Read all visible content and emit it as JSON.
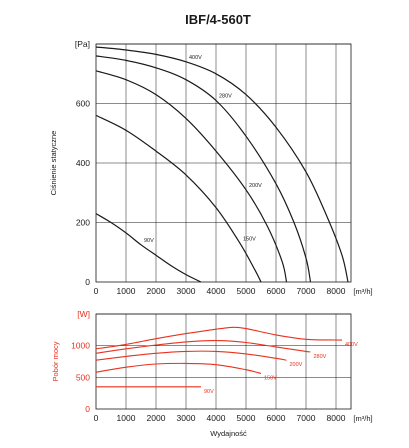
{
  "title": "IBF/4-560T",
  "colors": {
    "pressure": "#1a1a1a",
    "power": "#e8321e",
    "grid": "#1a1a1a"
  },
  "chart_data": [
    {
      "type": "line",
      "id": "pressure",
      "ylabel": "Ciśnienie statyczne",
      "yunit": "[Pa]",
      "xunit": "[m³/h]",
      "xlim": [
        0,
        8500
      ],
      "ylim": [
        0,
        800
      ],
      "xticks": [
        0,
        1000,
        2000,
        3000,
        4000,
        5000,
        6000,
        7000,
        8000
      ],
      "yticks": [
        0,
        200,
        400,
        600
      ],
      "grid": true,
      "series": [
        {
          "name": "400V",
          "points": [
            [
              0,
              790
            ],
            [
              1000,
              780
            ],
            [
              2000,
              765
            ],
            [
              3000,
              740
            ],
            [
              4000,
              700
            ],
            [
              5000,
              630
            ],
            [
              6000,
              520
            ],
            [
              7000,
              370
            ],
            [
              7700,
              220
            ],
            [
              8200,
              90
            ],
            [
              8400,
              0
            ]
          ]
        },
        {
          "name": "280V",
          "points": [
            [
              0,
              760
            ],
            [
              1000,
              745
            ],
            [
              2000,
              720
            ],
            [
              3000,
              680
            ],
            [
              4000,
              610
            ],
            [
              5000,
              490
            ],
            [
              6000,
              330
            ],
            [
              6600,
              200
            ],
            [
              7000,
              80
            ],
            [
              7150,
              0
            ]
          ]
        },
        {
          "name": "200V",
          "points": [
            [
              0,
              710
            ],
            [
              1000,
              680
            ],
            [
              2000,
              630
            ],
            [
              3000,
              550
            ],
            [
              4000,
              440
            ],
            [
              5000,
              310
            ],
            [
              5700,
              190
            ],
            [
              6200,
              70
            ],
            [
              6350,
              0
            ]
          ]
        },
        {
          "name": "150V",
          "points": [
            [
              0,
              560
            ],
            [
              1000,
              510
            ],
            [
              2000,
              440
            ],
            [
              3000,
              360
            ],
            [
              4000,
              250
            ],
            [
              4800,
              130
            ],
            [
              5300,
              40
            ],
            [
              5500,
              0
            ]
          ]
        },
        {
          "name": "90V",
          "points": [
            [
              0,
              230
            ],
            [
              500,
              200
            ],
            [
              1000,
              165
            ],
            [
              1500,
              125
            ],
            [
              2000,
              90
            ],
            [
              2500,
              55
            ],
            [
              3000,
              25
            ],
            [
              3500,
              0
            ]
          ]
        }
      ]
    },
    {
      "type": "line",
      "id": "power",
      "ylabel": "Pobór mocy",
      "yunit": "[W]",
      "xunit": "[m³/h]",
      "xlabel": "Wydajność",
      "xlim": [
        0,
        8500
      ],
      "ylim": [
        0,
        1500
      ],
      "xticks": [
        0,
        1000,
        2000,
        3000,
        4000,
        5000,
        6000,
        7000,
        8000
      ],
      "yticks": [
        0,
        500,
        1000
      ],
      "grid": true,
      "series": [
        {
          "name": "400V",
          "points": [
            [
              0,
              950
            ],
            [
              1000,
              1020
            ],
            [
              2000,
              1110
            ],
            [
              3000,
              1190
            ],
            [
              4000,
              1260
            ],
            [
              4600,
              1290
            ],
            [
              5000,
              1270
            ],
            [
              6000,
              1170
            ],
            [
              7000,
              1100
            ],
            [
              8000,
              1090
            ],
            [
              8200,
              1090
            ]
          ]
        },
        {
          "name": "280V",
          "points": [
            [
              0,
              880
            ],
            [
              1000,
              950
            ],
            [
              2000,
              1010
            ],
            [
              3000,
              1060
            ],
            [
              4000,
              1080
            ],
            [
              5000,
              1050
            ],
            [
              6000,
              980
            ],
            [
              7000,
              910
            ],
            [
              7150,
              900
            ]
          ]
        },
        {
          "name": "200V",
          "points": [
            [
              0,
              770
            ],
            [
              1000,
              830
            ],
            [
              2000,
              880
            ],
            [
              3000,
              910
            ],
            [
              4000,
              910
            ],
            [
              5000,
              870
            ],
            [
              6000,
              800
            ],
            [
              6350,
              770
            ]
          ]
        },
        {
          "name": "150V",
          "points": [
            [
              0,
              580
            ],
            [
              1000,
              660
            ],
            [
              2000,
              710
            ],
            [
              3000,
              720
            ],
            [
              4000,
              700
            ],
            [
              5000,
              620
            ],
            [
              5500,
              560
            ]
          ]
        },
        {
          "name": "90V",
          "points": [
            [
              0,
              350
            ],
            [
              1000,
              350
            ],
            [
              2000,
              350
            ],
            [
              3000,
              350
            ],
            [
              3500,
              350
            ]
          ]
        }
      ]
    }
  ]
}
